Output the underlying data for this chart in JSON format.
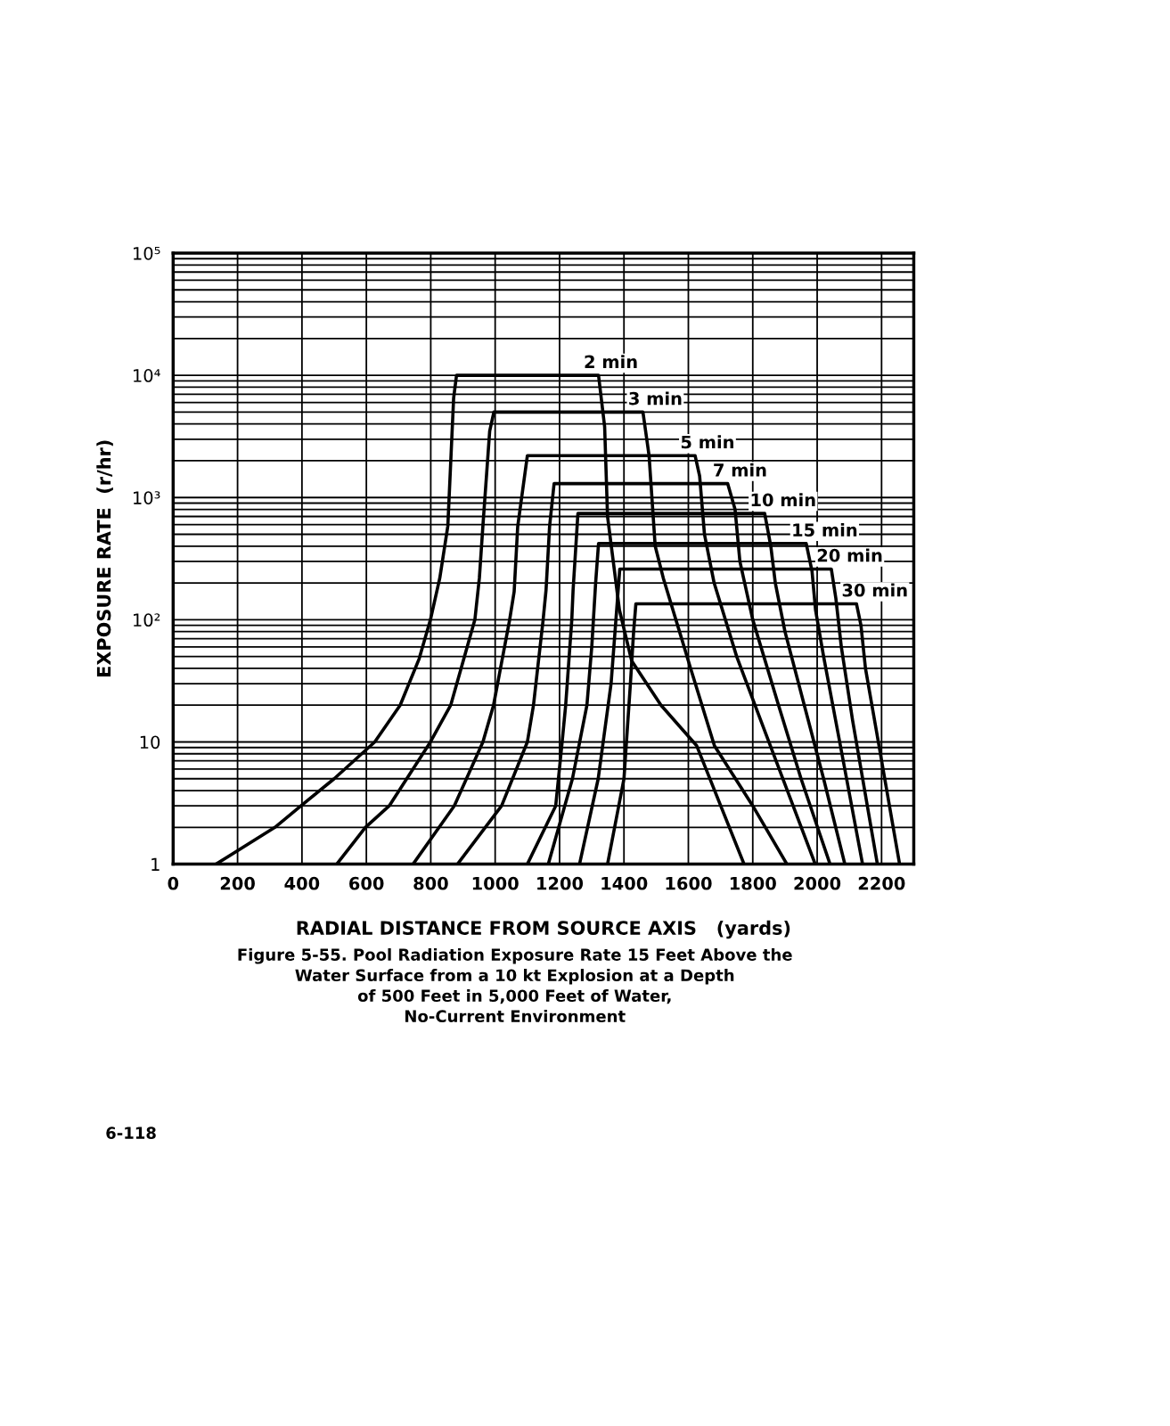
{
  "chart_data": {
    "type": "line",
    "xlabel": "RADIAL DISTANCE FROM SOURCE AXIS   (yards)",
    "ylabel": "EXPOSURE RATE  (r/hr)",
    "xlim": [
      0,
      2300
    ],
    "xticks": [
      0,
      200,
      400,
      600,
      800,
      1000,
      1200,
      1400,
      1600,
      1800,
      2000,
      2200
    ],
    "ylim": [
      1,
      100000
    ],
    "log": true,
    "yticks": [
      1,
      {
        "value": 2,
        "label": null
      },
      {
        "value": 3,
        "label": null
      },
      {
        "value": 4,
        "label": null
      },
      {
        "value": 5,
        "label": null
      },
      {
        "value": 6,
        "label": null
      },
      {
        "value": 7,
        "label": null
      },
      {
        "value": 8,
        "label": null
      },
      {
        "value": 9,
        "label": null
      },
      10,
      {
        "value": 20,
        "label": null
      },
      {
        "value": 30,
        "label": null
      },
      {
        "value": 40,
        "label": null
      },
      {
        "value": 50,
        "label": null
      },
      {
        "value": 60,
        "label": null
      },
      {
        "value": 70,
        "label": null
      },
      {
        "value": 80,
        "label": null
      },
      {
        "value": 90,
        "label": null
      },
      {
        "value": 100,
        "label": "10²"
      },
      {
        "value": 200,
        "label": null
      },
      {
        "value": 300,
        "label": null
      },
      {
        "value": 400,
        "label": null
      },
      {
        "value": 500,
        "label": null
      },
      {
        "value": 600,
        "label": null
      },
      {
        "value": 700,
        "label": null
      },
      {
        "value": 800,
        "label": null
      },
      {
        "value": 900,
        "label": null
      },
      {
        "value": 1000,
        "label": "10³"
      },
      {
        "value": 2000,
        "label": null
      },
      {
        "value": 3000,
        "label": null
      },
      {
        "value": 4000,
        "label": null
      },
      {
        "value": 5000,
        "label": null
      },
      {
        "value": 6000,
        "label": null
      },
      {
        "value": 7000,
        "label": null
      },
      {
        "value": 8000,
        "label": null
      },
      {
        "value": 9000,
        "label": null
      },
      {
        "value": 10000,
        "label": "10⁴"
      },
      {
        "value": 20000,
        "label": null
      },
      {
        "value": 30000,
        "label": null
      },
      {
        "value": 40000,
        "label": null
      },
      {
        "value": 50000,
        "label": null
      },
      {
        "value": 60000,
        "label": null
      },
      {
        "value": 70000,
        "label": null
      },
      {
        "value": 80000,
        "label": null
      },
      {
        "value": 90000,
        "label": null
      },
      {
        "value": 100000,
        "label": "10⁵"
      }
    ],
    "grid": true,
    "legend": false,
    "marker": "none",
    "line_style": "solid",
    "series": [
      {
        "name": "2 min",
        "color": "#000000",
        "x": [
          133,
          316,
          397,
          500,
          626,
          705,
          764,
          799,
          828,
          853,
          862,
          871,
          880,
          1000,
          1200,
          1321,
          1340,
          1349,
          1386,
          1424,
          1515,
          1626,
          1773
        ],
        "values": [
          1,
          2,
          3,
          5,
          10,
          20,
          48,
          100,
          219,
          585,
          1950,
          6500,
          10000,
          10000,
          10000,
          10000,
          3800,
          700,
          120,
          46,
          20,
          9.3,
          1
        ]
      },
      {
        "name": "3 min",
        "color": "#000000",
        "x": [
          508,
          597,
          671,
          799,
          862,
          937,
          951,
          962,
          983,
          996,
          1200,
          1459,
          1478,
          1497,
          1522,
          1607,
          1681,
          1800,
          1906
        ],
        "values": [
          1,
          2,
          3,
          10,
          20,
          100,
          220,
          590,
          3500,
          5000,
          5000,
          5000,
          2200,
          400,
          220,
          40,
          9.3,
          3,
          1
        ]
      },
      {
        "name": "5 min",
        "color": "#000000",
        "x": [
          745,
          873,
          962,
          995,
          1045,
          1059,
          1070,
          1100,
          1400,
          1621,
          1635,
          1650,
          1680,
          1750,
          1850,
          1994
        ],
        "values": [
          1,
          3,
          10,
          20,
          100,
          170,
          580,
          2200,
          2200,
          2200,
          1500,
          500,
          200,
          50,
          10,
          1
        ]
      },
      {
        "name": "7 min",
        "color": "#000000",
        "x": [
          883,
          1020,
          1100,
          1119,
          1149,
          1158,
          1169,
          1183,
          1500,
          1722,
          1745,
          1760,
          1800,
          1880,
          1950,
          2040
        ],
        "values": [
          1,
          3,
          10,
          20,
          100,
          175,
          580,
          1300,
          1300,
          1300,
          800,
          300,
          100,
          20,
          5,
          1
        ]
      },
      {
        "name": "10 min",
        "color": "#000000",
        "x": [
          1100,
          1188,
          1208,
          1219,
          1238,
          1242,
          1257,
          1600,
          1837,
          1856,
          1870,
          1900,
          1960,
          2020,
          2086
        ],
        "values": [
          1,
          3,
          10,
          20,
          100,
          175,
          740,
          740,
          740,
          400,
          200,
          80,
          20,
          5,
          1
        ]
      },
      {
        "name": "15 min",
        "color": "#000000",
        "x": [
          1165,
          1240,
          1285,
          1300,
          1312,
          1321,
          1700,
          1966,
          1984,
          1995,
          2020,
          2070,
          2141
        ],
        "values": [
          1,
          5,
          20,
          60,
          200,
          420,
          420,
          420,
          250,
          120,
          50,
          10,
          1
        ]
      },
      {
        "name": "20 min",
        "color": "#000000",
        "x": [
          1262,
          1320,
          1360,
          1375,
          1387,
          1800,
          2044,
          2058,
          2075,
          2110,
          2187
        ],
        "values": [
          1,
          5,
          30,
          100,
          260,
          260,
          260,
          150,
          60,
          15,
          1
        ]
      },
      {
        "name": "30 min",
        "color": "#000000",
        "x": [
          1349,
          1400,
          1420,
          1430,
          1437,
          1900,
          2122,
          2136,
          2150,
          2190,
          2256
        ],
        "values": [
          1,
          5,
          30,
          80,
          135,
          135,
          135,
          90,
          40,
          10,
          1
        ]
      }
    ],
    "annotations": [
      "Figure 5-55. Pool Radiation Exposure Rate 15 Feet Above the\nWater Surface from a 10 kt Explosion at a Depth\nof 500 Feet in 5,000 Feet of Water,\nNo-Current Environment",
      "6-118"
    ]
  }
}
